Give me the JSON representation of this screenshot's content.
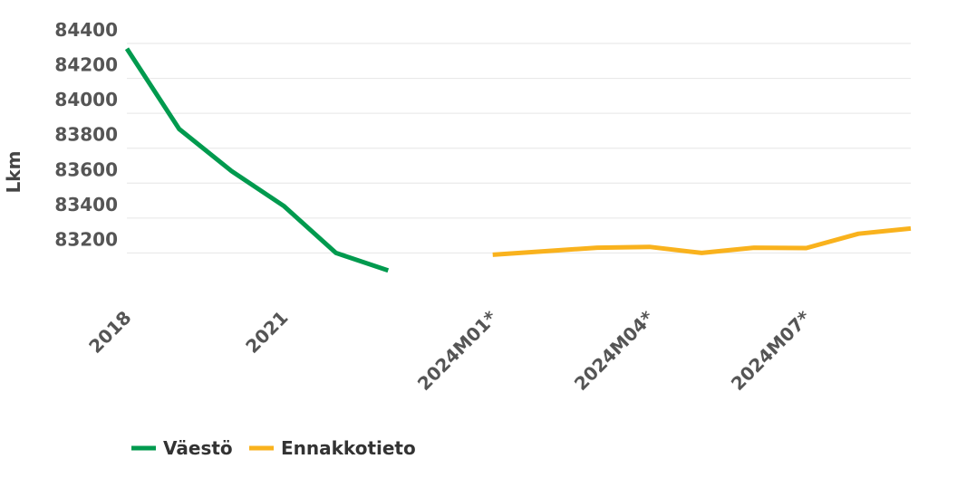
{
  "chart_data": {
    "type": "line",
    "title": "",
    "xlabel": "",
    "ylabel": "Lkm",
    "ylim": [
      83000,
      84400
    ],
    "yticks": [
      83200,
      83400,
      83600,
      83800,
      84000,
      84200,
      84400
    ],
    "grid": true,
    "legend_position": "bottom-left",
    "x_tick_labels": [
      "2018",
      "2021",
      "2024M01*",
      "2024M04*",
      "2024M07*"
    ],
    "series": [
      {
        "name": "Väestö",
        "color": "#009a4e",
        "x": [
          "2018",
          "2019",
          "2020",
          "2021",
          "2022",
          "2023"
        ],
        "values": [
          84370,
          83910,
          83670,
          83470,
          83200,
          83100
        ]
      },
      {
        "name": "Ennakkotieto",
        "color": "#f9b21d",
        "x": [
          "2024M01*",
          "2024M02*",
          "2024M03*",
          "2024M04*",
          "2024M05*",
          "2024M06*",
          "2024M07*",
          "2024M08*",
          "2024M09*"
        ],
        "values": [
          83190,
          83210,
          83230,
          83235,
          83200,
          83230,
          83228,
          83310,
          83340
        ]
      }
    ]
  }
}
